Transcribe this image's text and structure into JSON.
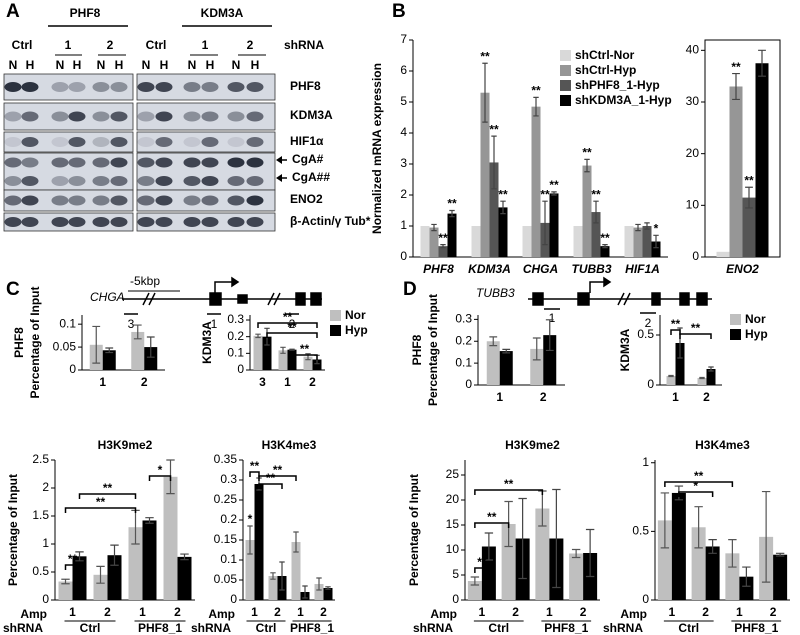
{
  "panel_labels": [
    "A",
    "B",
    "C",
    "D"
  ],
  "blot": {
    "groups": [
      "PHF8",
      "KDM3A"
    ],
    "shrna_label": "shRNA",
    "conditions": [
      "Ctrl",
      "1",
      "2",
      "Ctrl",
      "1",
      "2"
    ],
    "lanes": [
      "N",
      "H",
      "N",
      "H",
      "N",
      "H",
      "N",
      "H",
      "N",
      "H",
      "N",
      "H"
    ],
    "rows": [
      "PHF8",
      "KDM3A",
      "HIF1α",
      "CgA#",
      "CgA##",
      "ENO2",
      "β-Actin/γ Tub*"
    ]
  },
  "gene_maps": [
    {
      "gene": "CHGA",
      "distance": "-5kbp",
      "amplicons": [
        "3",
        "1",
        "2"
      ]
    },
    {
      "gene": "TUBB3",
      "amplicons": [
        "1",
        "2"
      ]
    }
  ],
  "chart_data": [
    {
      "type": "bar",
      "ylabel": "Normalized mRNA expression",
      "categories": [
        "PHF8",
        "KDM3A",
        "CHGA",
        "TUBB3",
        "HIF1A"
      ],
      "ylim": [
        0,
        7
      ],
      "yticks": [
        0,
        1,
        2,
        3,
        4,
        5,
        6,
        7
      ],
      "legend": "upper right",
      "series": [
        {
          "name": "shCtrl-Nor",
          "color": "#d9d9d9",
          "values": [
            1,
            1,
            1,
            1,
            1
          ]
        },
        {
          "name": "shCtrl-Hyp",
          "color": "#969696",
          "values": [
            0.95,
            5.3,
            4.85,
            2.95,
            0.95
          ],
          "errors": [
            0.1,
            0.95,
            0.3,
            0.2,
            0.1
          ],
          "annotations": [
            null,
            "**",
            "**",
            "**",
            null
          ]
        },
        {
          "name": "shPHF8_1-Hyp",
          "color": "#555555",
          "values": [
            0.35,
            3.05,
            1.1,
            1.45,
            1.0
          ],
          "errors": [
            0.05,
            0.85,
            0.7,
            0.35,
            0.1
          ],
          "annotations": [
            "**",
            "**",
            "**",
            "**",
            null
          ]
        },
        {
          "name": "shKDM3A_1-Hyp",
          "color": "#000000",
          "values": [
            1.4,
            1.6,
            2.05,
            0.35,
            0.5
          ],
          "errors": [
            0.1,
            0.2,
            0.05,
            0.05,
            0.2
          ],
          "annotations": [
            "**",
            "**",
            "**",
            "**",
            "*"
          ]
        }
      ]
    },
    {
      "type": "bar",
      "categories": [
        "ENO2"
      ],
      "ylim": [
        0,
        42
      ],
      "yticks": [
        0,
        10,
        20,
        30,
        40
      ],
      "series": [
        {
          "name": "shCtrl-Nor",
          "color": "#d9d9d9",
          "values": [
            1
          ]
        },
        {
          "name": "shCtrl-Hyp",
          "color": "#969696",
          "values": [
            33
          ],
          "errors": [
            2.5
          ],
          "annotations": [
            "**"
          ]
        },
        {
          "name": "shPHF8_1-Hyp",
          "color": "#555555",
          "values": [
            11.5
          ],
          "errors": [
            2
          ],
          "annotations": [
            "**"
          ]
        },
        {
          "name": "shKDM3A_1-Hyp",
          "color": "#000000",
          "values": [
            37.5
          ],
          "errors": [
            2.5
          ]
        }
      ]
    },
    {
      "type": "bar",
      "ylabel": [
        "PHF8",
        "Percentage of Input"
      ],
      "categories": [
        "1",
        "2"
      ],
      "ylim": [
        0,
        0.12
      ],
      "yticks": [
        0,
        0.05,
        0.1
      ],
      "series": [
        {
          "name": "Nor",
          "color": "#bfbfbf",
          "values": [
            0.055,
            0.083
          ],
          "errors": [
            0.04,
            0.015
          ]
        },
        {
          "name": "Hyp",
          "color": "#000000",
          "values": [
            0.043,
            0.05
          ],
          "errors": [
            0.005,
            0.022
          ]
        }
      ]
    },
    {
      "type": "bar",
      "ylabel": "KDM3A",
      "categories": [
        "3",
        "1",
        "2"
      ],
      "ylim": [
        0,
        0.33
      ],
      "yticks": [
        0,
        0.1,
        0.2,
        0.3
      ],
      "legend": "right",
      "brackets": [
        "**",
        "**",
        "**"
      ],
      "series": [
        {
          "name": "Nor",
          "color": "#bfbfbf",
          "values": [
            0.205,
            0.118,
            0.08
          ],
          "errors": [
            0.01,
            0.018,
            0.018
          ]
        },
        {
          "name": "Hyp",
          "color": "#000000",
          "values": [
            0.2,
            0.122,
            0.063
          ],
          "errors": [
            0.05,
            0.003,
            0.025
          ]
        }
      ]
    },
    {
      "type": "bar",
      "title": "H3K9me2",
      "ylabel": "Percentage of Input",
      "categories": [
        "1",
        "2",
        "1",
        "2"
      ],
      "groups": [
        "Ctrl",
        "PHF8_1"
      ],
      "category_axis_label": "Amp",
      "group_axis_label": "shRNA",
      "ylim": [
        0,
        2.5
      ],
      "yticks": [
        0,
        0.5,
        1,
        1.5,
        2,
        2.5
      ],
      "brackets": [
        "**",
        "**",
        "**",
        "*"
      ],
      "series": [
        {
          "name": "Nor",
          "color": "#bfbfbf",
          "values": [
            0.33,
            0.45,
            1.3,
            2.2
          ],
          "errors": [
            0.04,
            0.15,
            0.3,
            0.3
          ]
        },
        {
          "name": "Hyp",
          "color": "#000000",
          "values": [
            0.78,
            0.8,
            1.42,
            0.77
          ],
          "errors": [
            0.08,
            0.18,
            0.05,
            0.05
          ]
        }
      ]
    },
    {
      "type": "bar",
      "title": "H3K4me3",
      "categories": [
        "1",
        "2",
        "1",
        "2"
      ],
      "groups": [
        "Ctrl",
        "PHF8_1"
      ],
      "category_axis_label": "Amp",
      "group_axis_label": "shRNA",
      "ylim": [
        0,
        0.35
      ],
      "yticks": [
        0,
        0.05,
        0.1,
        0.15,
        0.2,
        0.25,
        0.3,
        0.35
      ],
      "brackets": [
        "**",
        "**",
        "**"
      ],
      "series": [
        {
          "name": "Nor",
          "color": "#bfbfbf",
          "values": [
            0.15,
            0.06,
            0.145,
            0.04
          ],
          "errors": [
            0.035,
            0.008,
            0.025,
            0.015
          ],
          "annotations": [
            "*",
            null,
            null,
            null
          ]
        },
        {
          "name": "Hyp",
          "color": "#000000",
          "values": [
            0.29,
            0.06,
            0.02,
            0.03
          ],
          "errors": [
            0.015,
            0.035,
            0.015,
            0.003
          ]
        }
      ]
    },
    {
      "type": "bar",
      "ylabel": [
        "PHF8",
        "Percentage of Input"
      ],
      "categories": [
        "1",
        "2"
      ],
      "ylim": [
        0,
        0.32
      ],
      "yticks": [
        0,
        0.1,
        0.2,
        0.3
      ],
      "series": [
        {
          "name": "Nor",
          "color": "#bfbfbf",
          "values": [
            0.2,
            0.165
          ],
          "errors": [
            0.02,
            0.05
          ]
        },
        {
          "name": "Hyp",
          "color": "#000000",
          "values": [
            0.155,
            0.228
          ],
          "errors": [
            0.008,
            0.07
          ]
        }
      ]
    },
    {
      "type": "bar",
      "ylabel": "KDM3A",
      "categories": [
        "1",
        "2"
      ],
      "ylim": [
        0,
        0.7
      ],
      "yticks": [
        0,
        0.5
      ],
      "legend": "right",
      "brackets": [
        "**",
        "**"
      ],
      "series": [
        {
          "name": "Nor",
          "color": "#bfbfbf",
          "values": [
            0.09,
            0.07
          ],
          "errors": [
            0.005,
            0.005
          ]
        },
        {
          "name": "Hyp",
          "color": "#000000",
          "values": [
            0.42,
            0.16
          ],
          "errors": [
            0.15,
            0.02
          ]
        }
      ]
    },
    {
      "type": "bar",
      "title": "H3K9me2",
      "ylabel": "Percentage of Input",
      "categories": [
        "1",
        "2",
        "1",
        "2"
      ],
      "groups": [
        "Ctrl",
        "PHF8_1"
      ],
      "category_axis_label": "Amp",
      "group_axis_label": "shRNA",
      "ylim": [
        0,
        28
      ],
      "yticks": [
        0,
        5,
        10,
        15,
        20,
        25
      ],
      "brackets": [
        "**",
        "**",
        "**"
      ],
      "series": [
        {
          "name": "Nor",
          "color": "#bfbfbf",
          "values": [
            3.8,
            15.2,
            18.3,
            9.3
          ],
          "errors": [
            0.8,
            4.5,
            3.5,
            0.8
          ]
        },
        {
          "name": "Hyp",
          "color": "#000000",
          "values": [
            10.7,
            12.3,
            12.3,
            9.4
          ],
          "errors": [
            2.7,
            8,
            9.8,
            4.7
          ]
        }
      ]
    },
    {
      "type": "bar",
      "title": "H3K4me3",
      "categories": [
        "1",
        "2",
        "1",
        "2"
      ],
      "groups": [
        "Ctrl",
        "PHF8_1"
      ],
      "category_axis_label": "Amp",
      "group_axis_label": "shRNA",
      "ylim": [
        0,
        1.02
      ],
      "yticks": [
        0,
        0.5,
        1
      ],
      "brackets": [
        "*",
        "**"
      ],
      "series": [
        {
          "name": "Nor",
          "color": "#bfbfbf",
          "values": [
            0.58,
            0.53,
            0.34,
            0.46
          ],
          "errors": [
            0.2,
            0.15,
            0.1,
            0.33
          ]
        },
        {
          "name": "Hyp",
          "color": "#000000",
          "values": [
            0.78,
            0.39,
            0.17,
            0.33
          ],
          "errors": [
            0.05,
            0.05,
            0.07,
            0.01
          ]
        }
      ]
    }
  ]
}
